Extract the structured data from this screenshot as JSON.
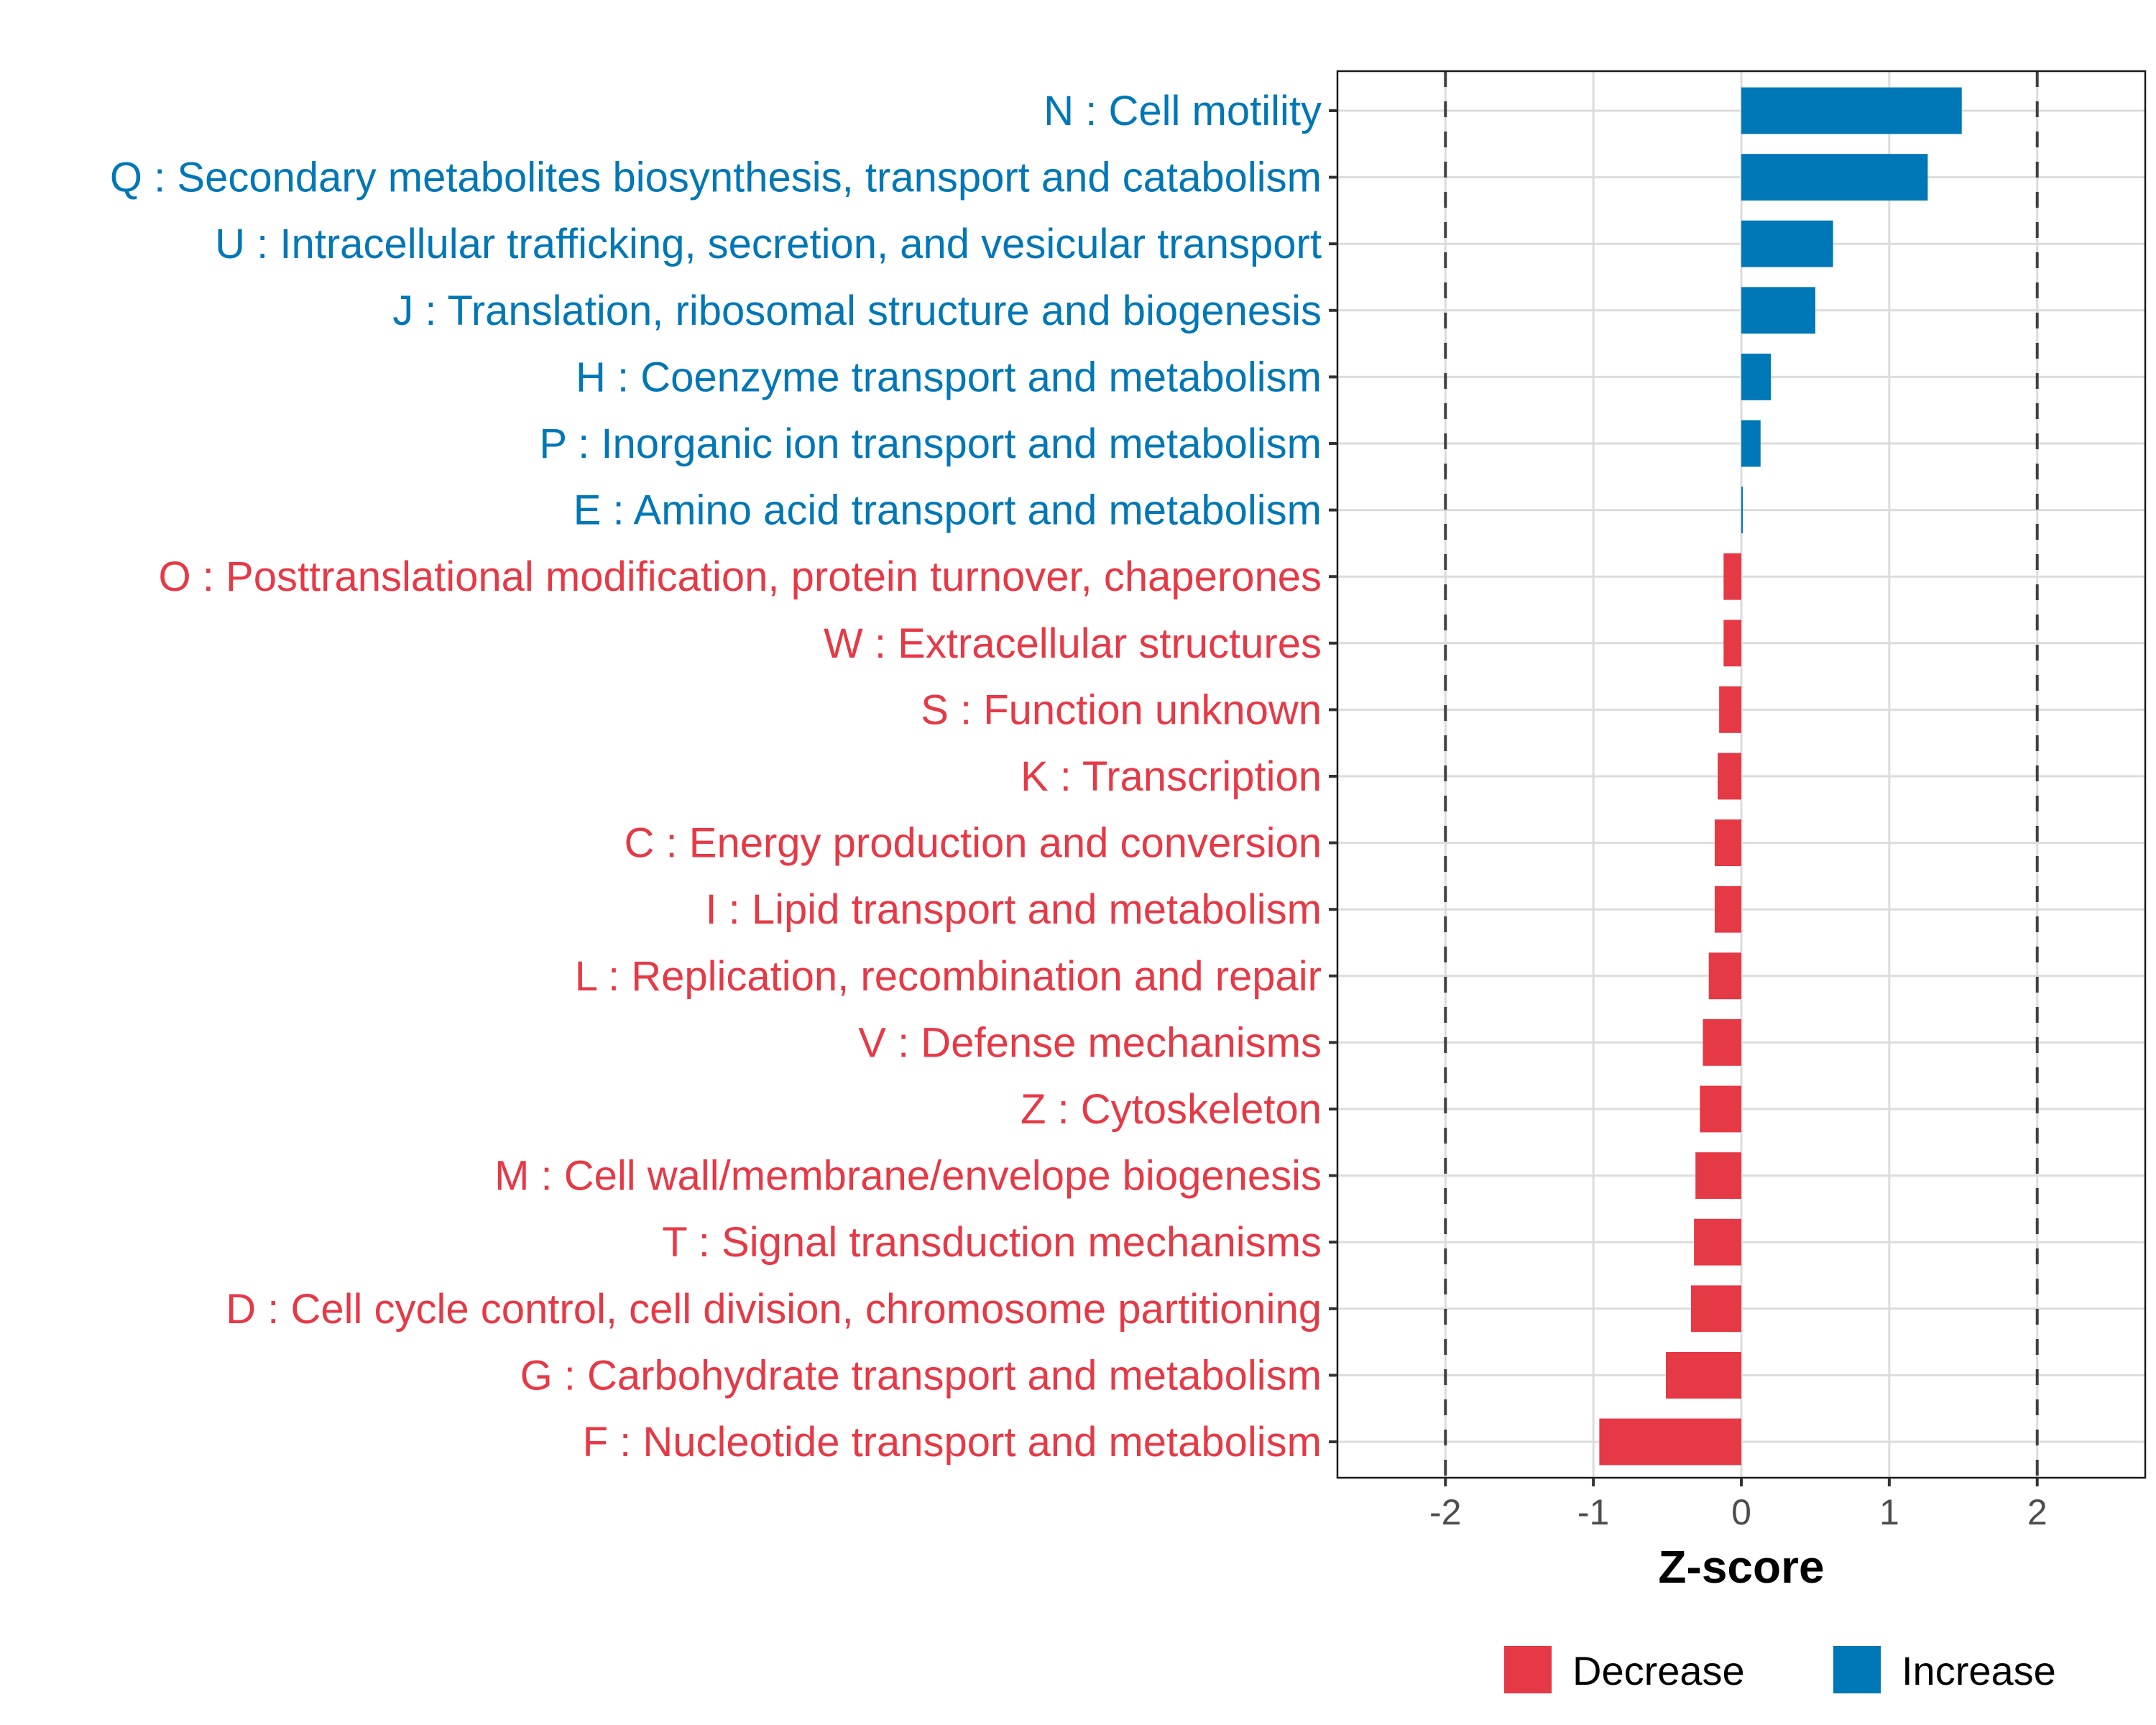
{
  "chart_data": {
    "type": "bar",
    "orientation": "horizontal",
    "title": "",
    "xlabel": "Z-score",
    "ylabel": "",
    "xlim": [
      -2.73,
      2.73
    ],
    "xticks": [
      -2,
      -1,
      0,
      1,
      2
    ],
    "xtick_labels": [
      "-2",
      "-1",
      "0",
      "1",
      "2"
    ],
    "reference_lines": [
      -2,
      2
    ],
    "grid": true,
    "legend_position": "bottom",
    "legend": [
      {
        "name": "Decrease",
        "color": "#E63946"
      },
      {
        "name": "Increase",
        "color": "#0077B6"
      }
    ],
    "categories": [
      "N : Cell motility",
      "Q : Secondary metabolites biosynthesis, transport and catabolism",
      "U : Intracellular trafficking, secretion, and vesicular transport",
      "J : Translation, ribosomal structure and biogenesis",
      "H : Coenzyme transport and metabolism",
      "P : Inorganic ion transport and metabolism",
      "E : Amino acid transport and metabolism",
      "O : Posttranslational modification, protein turnover, chaperones",
      "W : Extracellular structures",
      "S : Function unknown",
      "K : Transcription",
      "C : Energy production and conversion",
      "I : Lipid transport and metabolism",
      "L : Replication, recombination and repair",
      "V : Defense mechanisms",
      "Z : Cytoskeleton",
      "M : Cell wall/membrane/envelope biogenesis",
      "T : Signal transduction mechanisms",
      "D : Cell cycle control, cell division, chromosome partitioning",
      "G : Carbohydrate transport and metabolism",
      "F : Nucleotide transport and metabolism"
    ],
    "values": [
      1.49,
      1.26,
      0.62,
      0.5,
      0.2,
      0.13,
      0.01,
      -0.12,
      -0.12,
      -0.15,
      -0.16,
      -0.18,
      -0.18,
      -0.22,
      -0.26,
      -0.28,
      -0.31,
      -0.32,
      -0.34,
      -0.51,
      -0.96
    ],
    "groups": [
      "Increase",
      "Increase",
      "Increase",
      "Increase",
      "Increase",
      "Increase",
      "Increase",
      "Decrease",
      "Decrease",
      "Decrease",
      "Decrease",
      "Decrease",
      "Decrease",
      "Decrease",
      "Decrease",
      "Decrease",
      "Decrease",
      "Decrease",
      "Decrease",
      "Decrease",
      "Decrease"
    ]
  }
}
